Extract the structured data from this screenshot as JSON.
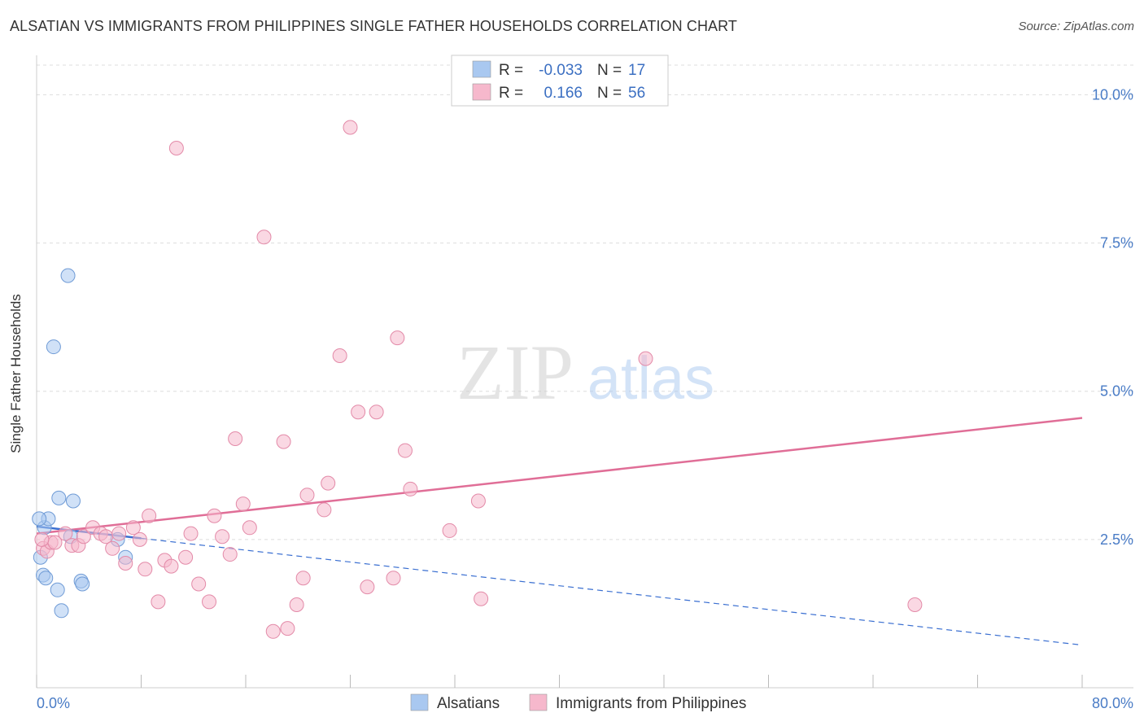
{
  "chart_data": {
    "type": "scatter",
    "title": "ALSATIAN VS IMMIGRANTS FROM PHILIPPINES SINGLE FATHER HOUSEHOLDS CORRELATION CHART",
    "source": "Source: ZipAtlas.com",
    "ylabel": "Single Father Households",
    "xlim": [
      0,
      80
    ],
    "ylim": [
      0,
      10.5
    ],
    "y_ticks": [
      {
        "value": 2.5,
        "label": "2.5%"
      },
      {
        "value": 5.0,
        "label": "5.0%"
      },
      {
        "value": 7.5,
        "label": "7.5%"
      },
      {
        "value": 10.0,
        "label": "10.0%"
      }
    ],
    "x_tick_labels": {
      "min": "0.0%",
      "max": "80.0%"
    },
    "x_minor_ticks": [
      0,
      8,
      16,
      24,
      32,
      40,
      48,
      56,
      64,
      72,
      80
    ],
    "watermark": {
      "zip": "ZIP",
      "atlas": "atlas"
    },
    "legend": {
      "rows": [
        {
          "r_label": "R =",
          "r_value": "-0.033",
          "n_label": "N =",
          "n_value": "17",
          "color": "#a9c8f0"
        },
        {
          "r_label": "R =",
          "r_value": "0.166",
          "n_label": "N =",
          "n_value": "56",
          "color": "#f6b8cc"
        }
      ]
    },
    "series": [
      {
        "name": "Alsatians",
        "color": "#a9c8f0",
        "stroke": "#6f9bd6",
        "line_color": "#3a6fd1",
        "trend": {
          "x0": 0,
          "y0": 2.72,
          "x1": 80,
          "y1": 0.72,
          "solid_until": 8
        },
        "points": [
          [
            0.3,
            2.2
          ],
          [
            0.5,
            1.9
          ],
          [
            0.6,
            2.7
          ],
          [
            0.7,
            1.85
          ],
          [
            0.9,
            2.85
          ],
          [
            1.3,
            5.75
          ],
          [
            1.6,
            1.65
          ],
          [
            1.7,
            3.2
          ],
          [
            1.9,
            1.3
          ],
          [
            2.4,
            6.95
          ],
          [
            2.6,
            2.55
          ],
          [
            2.8,
            3.15
          ],
          [
            3.4,
            1.8
          ],
          [
            3.5,
            1.75
          ],
          [
            6.2,
            2.5
          ],
          [
            6.8,
            2.2
          ],
          [
            0.2,
            2.85
          ]
        ]
      },
      {
        "name": "Immigrants from Philippines",
        "color": "#f6b8cc",
        "stroke": "#e38aa8",
        "line_color": "#e06e97",
        "trend": {
          "x0": 0,
          "y0": 2.6,
          "x1": 80,
          "y1": 4.55,
          "solid_until": 80
        },
        "points": [
          [
            0.5,
            2.35
          ],
          [
            0.8,
            2.3
          ],
          [
            1.1,
            2.45
          ],
          [
            1.4,
            2.45
          ],
          [
            2.2,
            2.6
          ],
          [
            2.7,
            2.4
          ],
          [
            3.2,
            2.4
          ],
          [
            3.6,
            2.55
          ],
          [
            4.3,
            2.7
          ],
          [
            4.9,
            2.6
          ],
          [
            5.3,
            2.55
          ],
          [
            5.8,
            2.35
          ],
          [
            6.3,
            2.6
          ],
          [
            6.8,
            2.1
          ],
          [
            7.4,
            2.7
          ],
          [
            7.9,
            2.5
          ],
          [
            8.3,
            2.0
          ],
          [
            8.6,
            2.9
          ],
          [
            9.3,
            1.45
          ],
          [
            9.8,
            2.15
          ],
          [
            10.3,
            2.05
          ],
          [
            10.7,
            9.1
          ],
          [
            11.4,
            2.2
          ],
          [
            11.8,
            2.6
          ],
          [
            12.4,
            1.75
          ],
          [
            13.2,
            1.45
          ],
          [
            13.6,
            2.9
          ],
          [
            14.2,
            2.55
          ],
          [
            14.8,
            2.25
          ],
          [
            15.2,
            4.2
          ],
          [
            15.8,
            3.1
          ],
          [
            16.3,
            2.7
          ],
          [
            17.4,
            7.6
          ],
          [
            18.1,
            0.95
          ],
          [
            18.9,
            4.15
          ],
          [
            19.2,
            1.0
          ],
          [
            19.9,
            1.4
          ],
          [
            20.4,
            1.85
          ],
          [
            20.7,
            3.25
          ],
          [
            22.0,
            3.0
          ],
          [
            22.3,
            3.45
          ],
          [
            23.2,
            5.6
          ],
          [
            24.0,
            9.45
          ],
          [
            24.6,
            4.65
          ],
          [
            25.3,
            1.7
          ],
          [
            26.0,
            4.65
          ],
          [
            27.3,
            1.85
          ],
          [
            27.6,
            5.9
          ],
          [
            28.2,
            4.0
          ],
          [
            28.6,
            3.35
          ],
          [
            31.6,
            2.65
          ],
          [
            33.8,
            3.15
          ],
          [
            34.0,
            1.5
          ],
          [
            46.6,
            5.55
          ],
          [
            67.2,
            1.4
          ],
          [
            0.4,
            2.5
          ]
        ]
      }
    ]
  }
}
